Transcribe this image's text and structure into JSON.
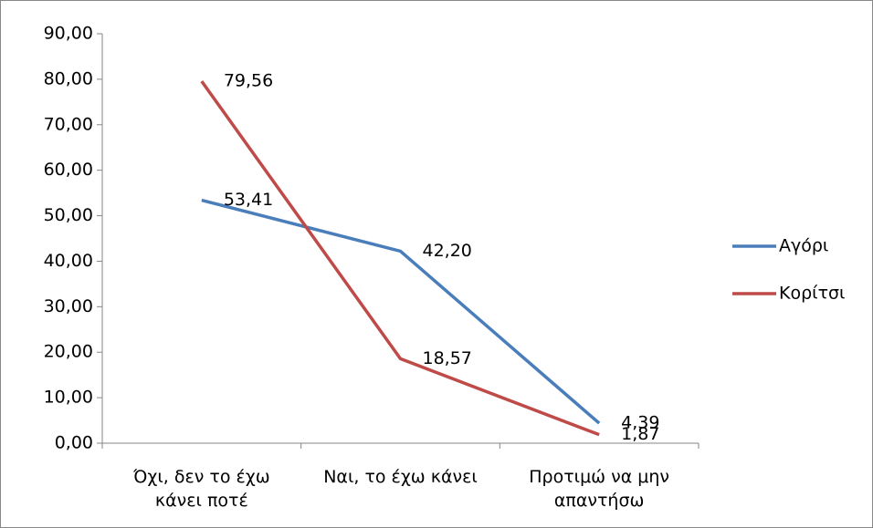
{
  "chart_data": {
    "type": "line",
    "categories": [
      "Όχι, δεν το έχω κάνει ποτέ",
      "Ναι, το έχω κάνει",
      "Προτιμώ να μην απαντήσω"
    ],
    "series": [
      {
        "name": "Αγόρι",
        "color": "#4a7ebb",
        "values": [
          53.41,
          42.2,
          4.39
        ],
        "value_labels": [
          "53,41",
          "42,20",
          "4,39"
        ]
      },
      {
        "name": "Κορίτσι",
        "color": "#be4b48",
        "values": [
          79.56,
          18.57,
          1.87
        ],
        "value_labels": [
          "79,56",
          "18,57",
          "1,87"
        ]
      }
    ],
    "ylim": [
      0,
      90
    ],
    "yticks": [
      {
        "value": 0,
        "label": "0,00"
      },
      {
        "value": 10,
        "label": "10,00"
      },
      {
        "value": 20,
        "label": "20,00"
      },
      {
        "value": 30,
        "label": "30,00"
      },
      {
        "value": 40,
        "label": "40,00"
      },
      {
        "value": 50,
        "label": "50,00"
      },
      {
        "value": 60,
        "label": "60,00"
      },
      {
        "value": 70,
        "label": "70,00"
      },
      {
        "value": 80,
        "label": "80,00"
      },
      {
        "value": 90,
        "label": "90,00"
      }
    ],
    "legend": "right"
  }
}
